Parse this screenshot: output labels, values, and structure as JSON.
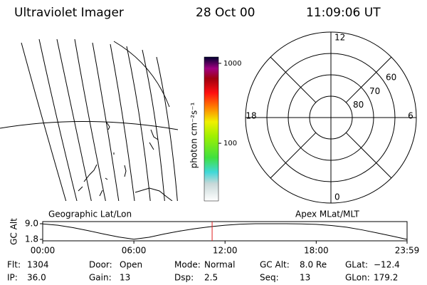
{
  "header": {
    "title": "Ultraviolet Imager",
    "date": "28 Oct 00",
    "time": "11:09:06 UT"
  },
  "colorbar": {
    "label": "photon cm⁻²s⁻¹",
    "log": true,
    "lim": [
      19,
      1200
    ],
    "ticks": [
      100,
      1000
    ]
  },
  "polar": {
    "rlim": [
      90,
      50
    ],
    "rings": [
      80,
      70,
      60
    ],
    "mlt_ticks": [
      12,
      6,
      18,
      0
    ]
  },
  "map_labels": {
    "left": "Geographic Lat/Lon",
    "right": "Apex MLat/MLT"
  },
  "orbit": {
    "ylabel": "GC Alt",
    "ylim": [
      1.8,
      9.0
    ],
    "yticks": [
      {
        "value": 9.0,
        "label": "9.0"
      },
      {
        "value": 1.8,
        "label": "1.8"
      }
    ],
    "xlim": [
      0,
      23.98
    ],
    "xticks": [
      {
        "value": 0,
        "label": "00:00"
      },
      {
        "value": 6,
        "label": "06:00"
      },
      {
        "value": 12,
        "label": "12:00"
      },
      {
        "value": 18,
        "label": "18:00"
      },
      {
        "value": 23.98,
        "label": "23:59"
      }
    ],
    "x": [
      0,
      1,
      2,
      3,
      4,
      5,
      6,
      7,
      8,
      9,
      10,
      11,
      12,
      13,
      14,
      15,
      16,
      17,
      18,
      19,
      20,
      21,
      22,
      23,
      23.98
    ],
    "values": [
      8.9,
      8.3,
      7.2,
      5.8,
      4.3,
      2.9,
      1.9,
      2.8,
      4.3,
      5.6,
      6.7,
      7.6,
      8.3,
      8.8,
      9.0,
      9.0,
      9.0,
      8.9,
      8.7,
      8.2,
      7.4,
      6.2,
      4.8,
      3.3,
      1.8
    ],
    "marker_x": 11.15,
    "marker_color": "#e02020"
  },
  "footer": [
    [
      [
        "Flt:",
        "1304"
      ],
      [
        "Door:",
        "Open"
      ],
      [
        "Mode:",
        "Normal"
      ],
      [
        "GC Alt:",
        "8.0 Re"
      ],
      [
        "GLat:",
        "−12.4"
      ]
    ],
    [
      [
        "IP:",
        "36.0"
      ],
      [
        "Gain:",
        "13"
      ],
      [
        "Dsp:",
        "2.5"
      ],
      [
        "Seq:",
        "13"
      ],
      [
        "GLon:",
        "179.2"
      ]
    ]
  ]
}
